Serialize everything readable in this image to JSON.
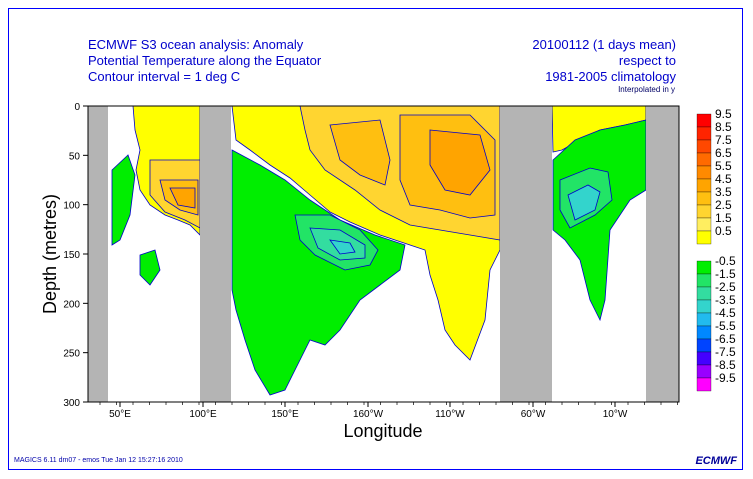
{
  "header": {
    "left_lines": [
      "ECMWF S3 ocean analysis: Anomaly",
      "Potential Temperature along the Equator",
      "Contour interval = 1 deg C"
    ],
    "right_lines": [
      "20100112 (1 days mean)",
      "respect to",
      "1981-2005 climatology"
    ],
    "interp_note": "Interpolated in y"
  },
  "footer": {
    "left": "MAGICS 6.11 dm07 - emos Tue Jan 12 15:27:16 2010",
    "logo": "ECMWF"
  },
  "chart_data": {
    "type": "heatmap",
    "xlabel": "Longitude",
    "ylabel": "Depth (metres)",
    "x_ticks": [
      "50°E",
      "100°E",
      "150°E",
      "160°W",
      "110°W",
      "60°W",
      "10°W"
    ],
    "y_ticks": [
      "0",
      "50",
      "100",
      "150",
      "200",
      "250",
      "300"
    ],
    "ylim": [
      0,
      300
    ],
    "y_inverted": true,
    "land_masks": [
      "39-52°E",
      "103-116°E",
      "85-56°W",
      "23-5°W"
    ],
    "legend": {
      "placement": "right",
      "positive": [
        {
          "value": "9.5",
          "color": "#ff0000"
        },
        {
          "value": "8.5",
          "color": "#ff2400"
        },
        {
          "value": "7.5",
          "color": "#ff4800"
        },
        {
          "value": "6.5",
          "color": "#ff6a00"
        },
        {
          "value": "5.5",
          "color": "#ff8a00"
        },
        {
          "value": "4.5",
          "color": "#ffa400"
        },
        {
          "value": "3.5",
          "color": "#ffbf10"
        },
        {
          "value": "2.5",
          "color": "#ffd530"
        },
        {
          "value": "1.5",
          "color": "#ffee60"
        },
        {
          "value": "0.5",
          "color": "#ffff00"
        }
      ],
      "negative": [
        {
          "value": "-0.5",
          "color": "#00ee00"
        },
        {
          "value": "-1.5",
          "color": "#22e466"
        },
        {
          "value": "-2.5",
          "color": "#33dda0"
        },
        {
          "value": "-3.5",
          "color": "#33d4cc"
        },
        {
          "value": "-4.5",
          "color": "#22bbee"
        },
        {
          "value": "-5.5",
          "color": "#0088ff"
        },
        {
          "value": "-6.5",
          "color": "#0044ff"
        },
        {
          "value": "-7.5",
          "color": "#4400ff"
        },
        {
          "value": "-8.5",
          "color": "#9900ff"
        },
        {
          "value": "-9.5",
          "color": "#ff00ff"
        }
      ]
    }
  }
}
